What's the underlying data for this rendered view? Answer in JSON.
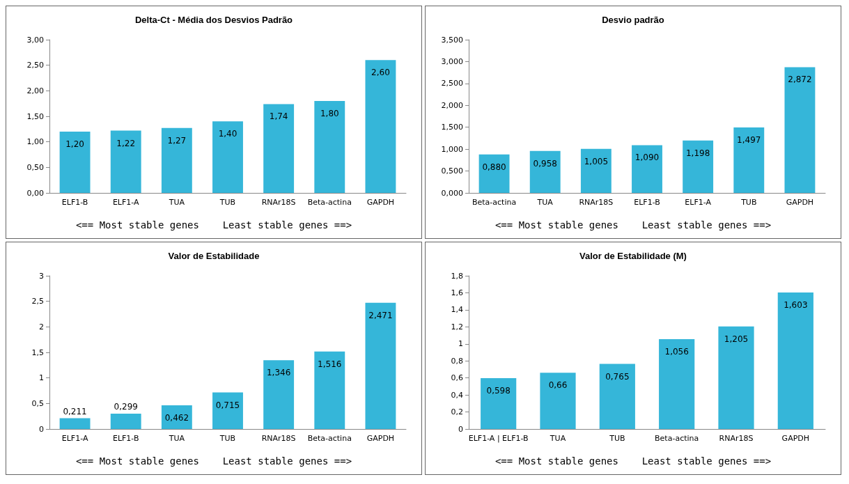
{
  "chart_data": [
    {
      "type": "bar",
      "title": "Delta-Ct - Média dos Desvios Padrão",
      "categories": [
        "ELF1-B",
        "ELF1-A",
        "TUA",
        "TUB",
        "RNAr18S",
        "Beta-actina",
        "GAPDH"
      ],
      "values": [
        1.2,
        1.22,
        1.27,
        1.4,
        1.74,
        1.8,
        2.6
      ],
      "value_labels": [
        "1,20",
        "1,22",
        "1,27",
        "1,40",
        "1,74",
        "1,80",
        "2,60"
      ],
      "color": "#35b6d9",
      "ylim": [
        0,
        3
      ],
      "yticks": [
        {
          "value": 0,
          "label": "0,00"
        },
        {
          "value": 0.5,
          "label": "0,50"
        },
        {
          "value": 1,
          "label": "1,00"
        },
        {
          "value": 1.5,
          "label": "1,50"
        },
        {
          "value": 2,
          "label": "2,00"
        },
        {
          "value": 2.5,
          "label": "2,50"
        },
        {
          "value": 3,
          "label": "3,00"
        }
      ],
      "grid": false,
      "annotations": [
        "<== Most stable genes    Least stable genes ==>"
      ]
    },
    {
      "type": "bar",
      "title": "Desvio padrão",
      "categories": [
        "Beta-actina",
        "TUA",
        "RNAr18S",
        "ELF1-B",
        "ELF1-A",
        "TUB",
        "GAPDH"
      ],
      "values": [
        0.88,
        0.958,
        1.005,
        1.09,
        1.198,
        1.497,
        2.872
      ],
      "value_labels": [
        "0,880",
        "0,958",
        "1,005",
        "1,090",
        "1,198",
        "1,497",
        "2,872"
      ],
      "color": "#35b6d9",
      "ylim": [
        0,
        3.5
      ],
      "yticks": [
        {
          "value": 0,
          "label": "0,000"
        },
        {
          "value": 0.5,
          "label": "0,500"
        },
        {
          "value": 1,
          "label": "1,000"
        },
        {
          "value": 1.5,
          "label": "1,500"
        },
        {
          "value": 2,
          "label": "2,000"
        },
        {
          "value": 2.5,
          "label": "2,500"
        },
        {
          "value": 3,
          "label": "3,000"
        },
        {
          "value": 3.5,
          "label": "3,500"
        }
      ],
      "grid": false,
      "annotations": [
        "<== Most stable genes    Least stable genes ==>"
      ]
    },
    {
      "type": "bar",
      "title": "Valor de Estabilidade",
      "categories": [
        "ELF1-A",
        "ELF1-B",
        "TUA",
        "TUB",
        "RNAr18S",
        "Beta-actina",
        "GAPDH"
      ],
      "values": [
        0.211,
        0.299,
        0.462,
        0.715,
        1.346,
        1.516,
        2.471
      ],
      "value_labels": [
        "0,211",
        "0,299",
        "0,462",
        "0,715",
        "1,346",
        "1,516",
        "2,471"
      ],
      "color": "#35b6d9",
      "ylim": [
        0,
        3
      ],
      "yticks": [
        0,
        {
          "value": 0.5,
          "label": "0,5"
        },
        1,
        {
          "value": 1.5,
          "label": "1,5"
        },
        2,
        {
          "value": 2.5,
          "label": "2,5"
        },
        3
      ],
      "grid": false,
      "annotations": [
        "<== Most stable genes    Least stable genes ==>"
      ]
    },
    {
      "type": "bar",
      "title": "Valor de Estabilidade (M)",
      "categories": [
        "ELF1-A | ELF1-B",
        "TUA",
        "TUB",
        "Beta-actina",
        "RNAr18S",
        "GAPDH"
      ],
      "values": [
        0.598,
        0.66,
        0.765,
        1.056,
        1.205,
        1.603
      ],
      "value_labels": [
        "0,598",
        "0,66",
        "0,765",
        "1,056",
        "1,205",
        "1,603"
      ],
      "color": "#35b6d9",
      "ylim": [
        0,
        1.8
      ],
      "yticks": [
        0,
        {
          "value": 0.2,
          "label": "0,2"
        },
        {
          "value": 0.4,
          "label": "0,4"
        },
        {
          "value": 0.6,
          "label": "0,6"
        },
        {
          "value": 0.8,
          "label": "0,8"
        },
        1,
        {
          "value": 1.2,
          "label": "1,2"
        },
        {
          "value": 1.4,
          "label": "1,4"
        },
        {
          "value": 1.6,
          "label": "1,6"
        },
        {
          "value": 1.8,
          "label": "1,8"
        }
      ],
      "grid": false,
      "annotations": [
        "<== Most stable genes    Least stable genes ==>"
      ]
    }
  ]
}
